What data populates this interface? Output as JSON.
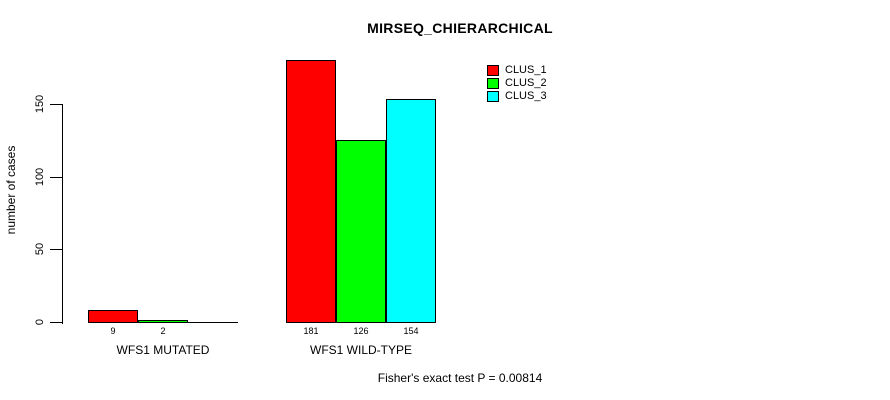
{
  "chart_data": {
    "type": "bar",
    "title": "MIRSEQ_CHIERARCHICAL",
    "ylabel": "number of cases",
    "xlabel": "",
    "categories": [
      "WFS1 MUTATED",
      "WFS1 WILD-TYPE"
    ],
    "series": [
      {
        "name": "CLUS_1",
        "color": "#ff0000",
        "values": [
          9,
          181
        ]
      },
      {
        "name": "CLUS_2",
        "color": "#00ff00",
        "values": [
          2,
          126
        ]
      },
      {
        "name": "CLUS_3",
        "color": "#00ffff",
        "values": [
          0,
          154
        ]
      }
    ],
    "bar_labels": [
      [
        "9",
        "2",
        ""
      ],
      [
        "181",
        "126",
        "154"
      ]
    ],
    "yticks": [
      0,
      50,
      100,
      150
    ],
    "ylim": [
      0,
      150
    ],
    "grid": false,
    "legend_position": "top-right",
    "annotation": "Fisher's exact test P = 0.00814",
    "background_color": "#ffffff",
    "axis_color": "#000000"
  }
}
